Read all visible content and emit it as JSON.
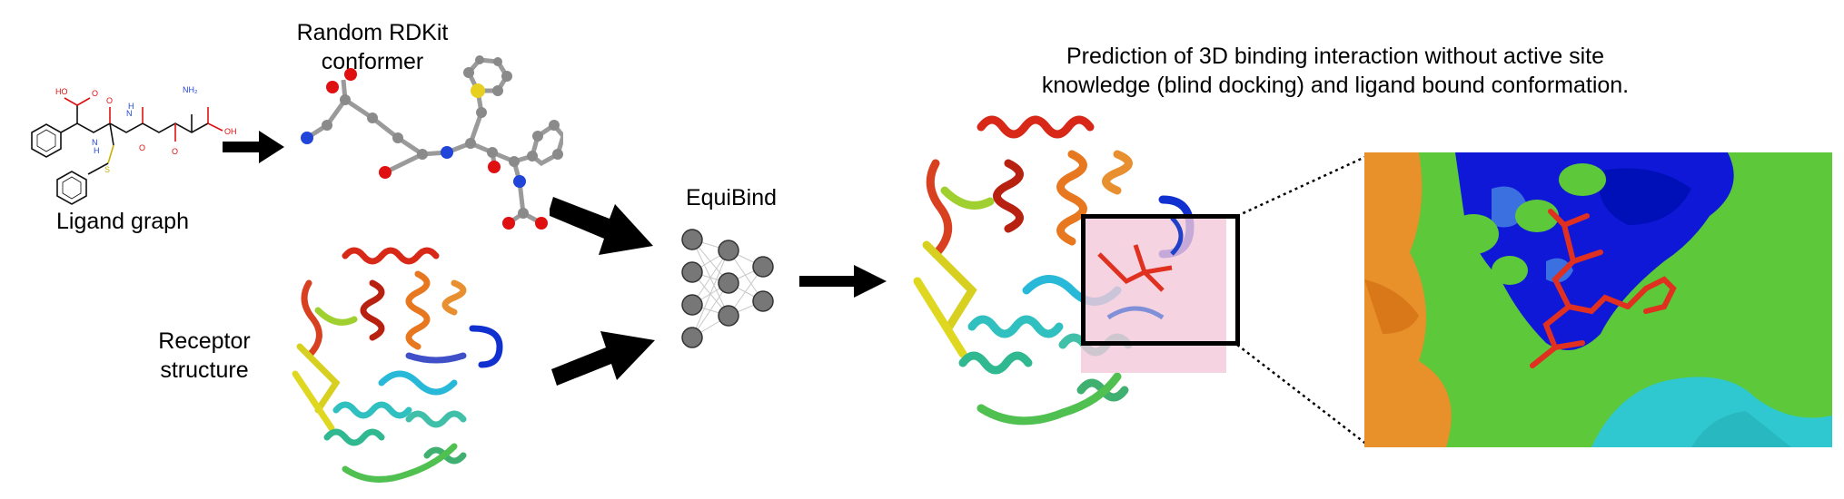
{
  "labels": {
    "ligand_graph": "Ligand graph",
    "conformer_line1": "Random RDKit",
    "conformer_line2": "conformer",
    "receptor_line1": "Receptor",
    "receptor_line2": "structure",
    "model": "EquiBind",
    "prediction_line1": "Prediction of 3D binding interaction without active site",
    "prediction_line2": "knowledge (blind docking) and ligand bound conformation."
  },
  "molecule_2d": {
    "atom_labels": [
      "HO",
      "O",
      "N",
      "H",
      "O",
      "N",
      "H",
      "O",
      "NH₂",
      "O",
      "OH",
      "S"
    ]
  },
  "colors": {
    "oxygen": "#e01010",
    "nitrogen": "#2045d8",
    "sulfur": "#e8d020",
    "carbon": "#8a8a8a",
    "arrow": "#000000",
    "highlight_box": "#f3c8da",
    "surface_green": "#5cc83a",
    "surface_blue": "#1018d8",
    "surface_orange": "#e8902a",
    "surface_cyan": "#30c8d0",
    "ligand_red": "#e03020"
  }
}
